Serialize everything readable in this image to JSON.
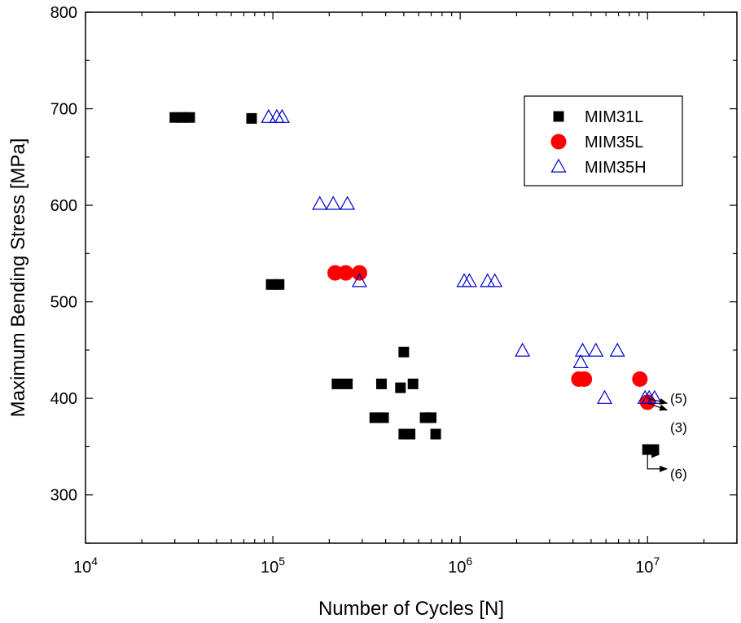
{
  "chart_data": {
    "type": "scatter",
    "title": "",
    "xlabel": "Number of Cycles [N]",
    "ylabel": "Maximum Bending Stress [MPa]",
    "x_scale": "log",
    "xlim": [
      10000,
      30000000
    ],
    "ylim": [
      250,
      800
    ],
    "x_ticks": [
      {
        "value": 10000,
        "base": "10",
        "exp": "4"
      },
      {
        "value": 100000,
        "base": "10",
        "exp": "5"
      },
      {
        "value": 1000000,
        "base": "10",
        "exp": "6"
      },
      {
        "value": 10000000,
        "base": "10",
        "exp": "7"
      }
    ],
    "y_ticks": [
      {
        "value": 300,
        "label": "300"
      },
      {
        "value": 400,
        "label": "400"
      },
      {
        "value": 500,
        "label": "500"
      },
      {
        "value": 600,
        "label": "600"
      },
      {
        "value": 700,
        "label": "700"
      },
      {
        "value": 800,
        "label": "800"
      }
    ],
    "grid": false,
    "legend_position": "top-right",
    "series": [
      {
        "name": "MIM31L",
        "marker": "square",
        "color": "#000000",
        "points": [
          {
            "x": 30000,
            "y": 691
          },
          {
            "x": 33000,
            "y": 691
          },
          {
            "x": 36000,
            "y": 691
          },
          {
            "x": 77000,
            "y": 690
          },
          {
            "x": 98000,
            "y": 518
          },
          {
            "x": 108000,
            "y": 518
          },
          {
            "x": 220000,
            "y": 415
          },
          {
            "x": 250000,
            "y": 415
          },
          {
            "x": 380000,
            "y": 415
          },
          {
            "x": 560000,
            "y": 415
          },
          {
            "x": 500000,
            "y": 448
          },
          {
            "x": 480000,
            "y": 411
          },
          {
            "x": 350000,
            "y": 380
          },
          {
            "x": 390000,
            "y": 380
          },
          {
            "x": 650000,
            "y": 380
          },
          {
            "x": 700000,
            "y": 380
          },
          {
            "x": 500000,
            "y": 363
          },
          {
            "x": 540000,
            "y": 363
          },
          {
            "x": 740000,
            "y": 363
          },
          {
            "x": 10000000,
            "y": 347
          },
          {
            "x": 10800000,
            "y": 347
          }
        ]
      },
      {
        "name": "MIM35L",
        "marker": "circle",
        "color": "#ff0000",
        "points": [
          {
            "x": 215000,
            "y": 530
          },
          {
            "x": 245000,
            "y": 530
          },
          {
            "x": 290000,
            "y": 530
          },
          {
            "x": 4300000,
            "y": 420
          },
          {
            "x": 4600000,
            "y": 420
          },
          {
            "x": 9100000,
            "y": 420
          },
          {
            "x": 10000000,
            "y": 396
          }
        ]
      },
      {
        "name": "MIM35H",
        "marker": "triangle",
        "color": "#0000cc",
        "points": [
          {
            "x": 95000,
            "y": 691
          },
          {
            "x": 105000,
            "y": 691
          },
          {
            "x": 112000,
            "y": 691
          },
          {
            "x": 178000,
            "y": 601
          },
          {
            "x": 210000,
            "y": 601
          },
          {
            "x": 250000,
            "y": 601
          },
          {
            "x": 290000,
            "y": 521
          },
          {
            "x": 1050000,
            "y": 521
          },
          {
            "x": 1120000,
            "y": 521
          },
          {
            "x": 1400000,
            "y": 521
          },
          {
            "x": 1530000,
            "y": 521
          },
          {
            "x": 2150000,
            "y": 449
          },
          {
            "x": 4500000,
            "y": 449
          },
          {
            "x": 5300000,
            "y": 449
          },
          {
            "x": 6900000,
            "y": 449
          },
          {
            "x": 4400000,
            "y": 437
          },
          {
            "x": 5900000,
            "y": 400
          },
          {
            "x": 9700000,
            "y": 400
          },
          {
            "x": 10200000,
            "y": 400
          },
          {
            "x": 10900000,
            "y": 400
          }
        ]
      }
    ],
    "annotations": [
      {
        "label": "(5)",
        "x": 10000000,
        "y": 400,
        "arrow_to_x": 12700000,
        "arrow_to_y": 395,
        "text_x": 13200000,
        "text_y": 400
      },
      {
        "label": "(3)",
        "x": 10000000,
        "y": 395,
        "arrow_to_x": 12700000,
        "arrow_to_y": 388,
        "text_x": 13200000,
        "text_y": 370
      },
      {
        "label": "(6)",
        "x": 10000000,
        "y": 340,
        "arrow_to_x": 12700000,
        "arrow_to_y": 327,
        "text_x": 13200000,
        "text_y": 322
      }
    ]
  }
}
